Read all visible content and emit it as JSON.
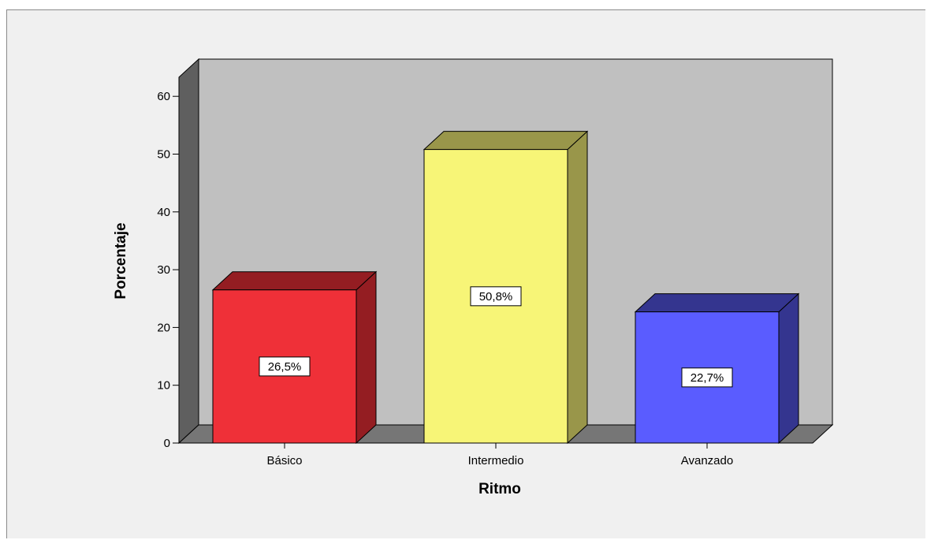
{
  "chart_data": {
    "type": "bar",
    "title": "",
    "xlabel": "Ritmo",
    "ylabel": "Porcentaje",
    "categories": [
      "Básico",
      "Intermedio",
      "Avanzado"
    ],
    "values": [
      26.5,
      50.8,
      22.7
    ],
    "data_labels": [
      "26,5%",
      "50,8%",
      "22,7%"
    ],
    "ylim": [
      0,
      60
    ],
    "yticks": [
      0,
      10,
      20,
      30,
      40,
      50,
      60
    ],
    "ytick_labels": [
      "0",
      "10",
      "20",
      "30",
      "40",
      "50",
      "60"
    ],
    "grid": false,
    "style": "3d",
    "colors": {
      "bars": [
        "#ef3038",
        "#f7f577",
        "#5a5cff"
      ],
      "bar_sides": [
        "#941d22",
        "#99964a",
        "#34358f"
      ],
      "bar_tops": [
        "#941d22",
        "#99964a",
        "#34358f"
      ],
      "back_wall": "#c0c0c0",
      "side_wall": "#5f5f5f",
      "floor": "#767676",
      "background": "#f0f0f0"
    }
  }
}
